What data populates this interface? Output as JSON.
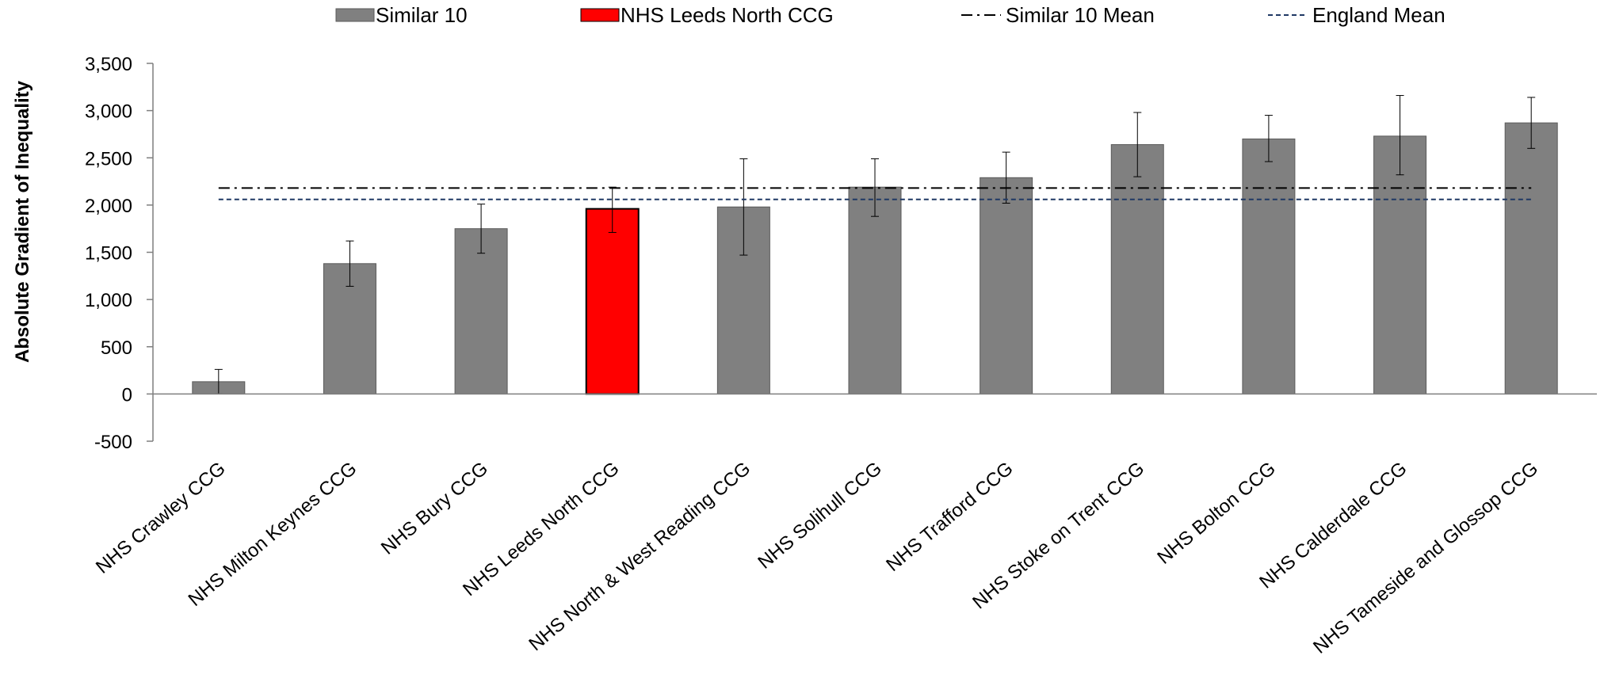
{
  "chart_data": {
    "type": "bar",
    "ylabel": "Absolute Gradient of Inequality",
    "xlabel": "",
    "ylim": [
      -500,
      3500
    ],
    "yticks": [
      -500,
      0,
      500,
      1000,
      1500,
      2000,
      2500,
      3000,
      3500
    ],
    "ytick_labels": [
      "-500",
      "0",
      "500",
      "1,000",
      "1,500",
      "2,000",
      "2,500",
      "3,000",
      "3,500"
    ],
    "grid": false,
    "legend_position": "top",
    "categories": [
      "NHS Crawley CCG",
      "NHS Milton Keynes CCG",
      "NHS Bury CCG",
      "NHS Leeds North CCG",
      "NHS North & West Reading CCG",
      "NHS Solihull CCG",
      "NHS Trafford CCG",
      "NHS Stoke on Trent CCG",
      "NHS Bolton CCG",
      "NHS Calderdale CCG",
      "NHS Tameside and Glossop CCG"
    ],
    "series": [
      {
        "name": "Similar 10",
        "values": [
          130,
          1380,
          1750,
          1960,
          1980,
          2190,
          2290,
          2640,
          2700,
          2730,
          2870
        ],
        "error_low": [
          0,
          1140,
          1490,
          1710,
          1470,
          1880,
          2020,
          2300,
          2460,
          2320,
          2600
        ],
        "error_high": [
          260,
          1620,
          2010,
          2190,
          2490,
          2490,
          2560,
          2980,
          2950,
          3160,
          3140
        ]
      }
    ],
    "highlight": {
      "name": "NHS Leeds North CCG",
      "index": 3
    },
    "reference_lines": [
      {
        "name": "Similar 10 Mean",
        "value": 2180,
        "style": "dash-dot"
      },
      {
        "name": "England Mean",
        "value": 2060,
        "style": "dashed"
      }
    ],
    "legend": [
      {
        "label": "Similar 10",
        "kind": "bar"
      },
      {
        "label": "NHS Leeds North CCG",
        "kind": "bar-highlight"
      },
      {
        "label": "Similar 10 Mean",
        "kind": "dash-dot"
      },
      {
        "label": "England Mean",
        "kind": "dashed"
      }
    ],
    "colors": {
      "bar": "#808080",
      "bar_stroke": "#5a5a5a",
      "highlight": "#ff0000",
      "highlight_stroke": "#000000",
      "similar_mean": "#000000",
      "england_mean": "#1f3864",
      "axis": "#7f7f7f",
      "error": "#000000"
    }
  }
}
